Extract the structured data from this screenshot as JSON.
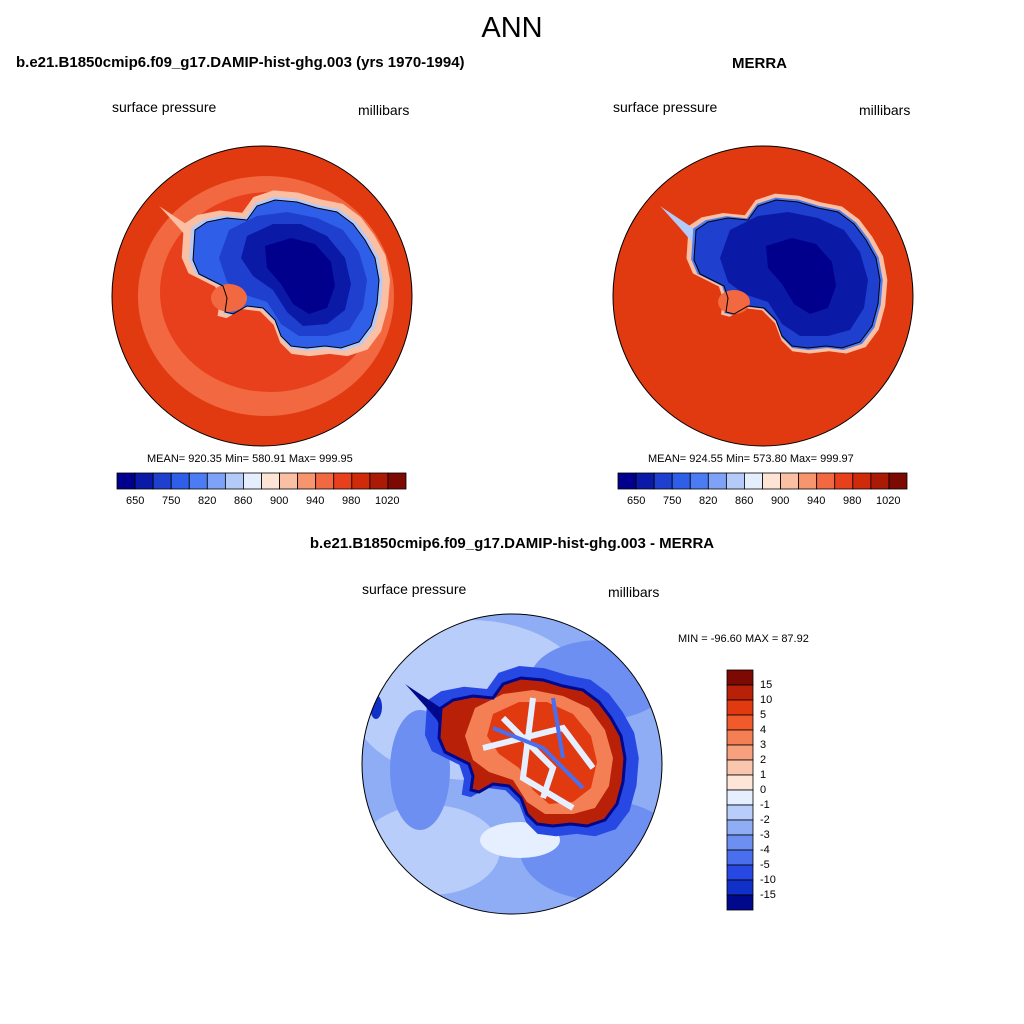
{
  "title": "ANN",
  "colors": {
    "abs_levels": [
      "#00008c",
      "#0a1aa6",
      "#1f3fcf",
      "#2f5ee8",
      "#4b7cf4",
      "#7ea2f7",
      "#b4cbfa",
      "#e4eefc",
      "#fde4d4",
      "#fbbfa3",
      "#f7956f",
      "#f26841",
      "#e8401d",
      "#cf2a0a",
      "#aa1a05",
      "#7d0a02"
    ],
    "diff_levels": [
      "#7d0a02",
      "#b82107",
      "#e23a10",
      "#f15a2a",
      "#f47f55",
      "#f7a07e",
      "#fac6ae",
      "#fde6d8",
      "#e6efff",
      "#b8cdfa",
      "#8fadf5",
      "#6d8ff2",
      "#4a6fee",
      "#2848e3",
      "#1030c8",
      "#00088c"
    ]
  },
  "panels": [
    {
      "id": "model",
      "title": "b.e21.B1850cmip6.f09_g17.DAMIP-hist-ghg.003 (yrs 1970-1994)",
      "left_label": "surface pressure",
      "right_label": "millibars",
      "stats": "MEAN= 920.35  Min= 580.91  Max= 999.95",
      "colorbar_ticks": [
        "650",
        "750",
        "820",
        "860",
        "900",
        "940",
        "980",
        "1020"
      ]
    },
    {
      "id": "obs",
      "title": "MERRA",
      "left_label": "surface pressure",
      "right_label": "millibars",
      "stats": "MEAN= 924.55  Min= 573.80  Max= 999.97",
      "colorbar_ticks": [
        "650",
        "750",
        "820",
        "860",
        "900",
        "940",
        "980",
        "1020"
      ]
    },
    {
      "id": "diff",
      "title": "b.e21.B1850cmip6.f09_g17.DAMIP-hist-ghg.003 - MERRA",
      "left_label": "surface pressure",
      "right_label": "millibars",
      "stats": "MIN = -96.60 MAX =  87.92",
      "colorbar_ticks": [
        "15",
        "10",
        "5",
        "4",
        "3",
        "2",
        "1",
        "0",
        "-1",
        "-2",
        "-3",
        "-4",
        "-5",
        "-10",
        "-15"
      ]
    }
  ]
}
